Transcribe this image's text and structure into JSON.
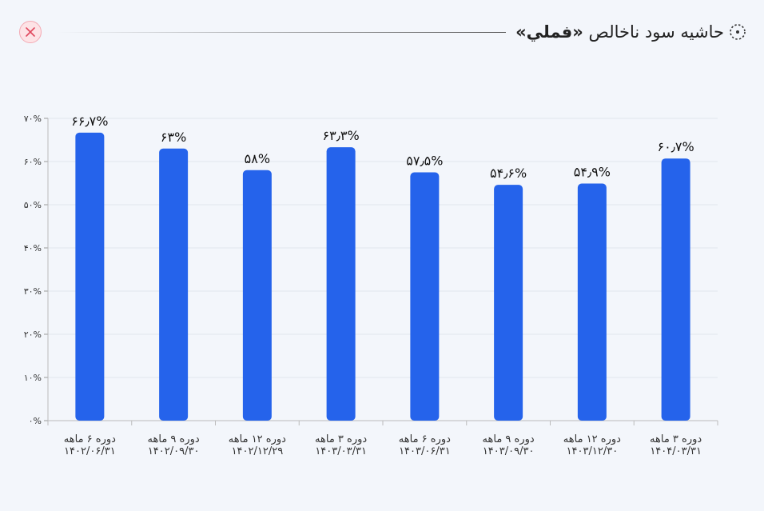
{
  "header": {
    "title_main": "حاشیه سود ناخالص",
    "title_symbol": "«فملي»"
  },
  "icons": {
    "close": "close-icon",
    "title": "dotted-circle-icon"
  },
  "colors": {
    "bar": "#2563eb",
    "close_bg": "#fde3e6",
    "close_x": "#e0485e",
    "grid": "#e1e6ee"
  },
  "chart_data": {
    "type": "bar",
    "categories": [
      [
        "دوره ۳ ماهه",
        "۱۴۰۴/۰۳/۳۱"
      ],
      [
        "دوره ۱۲ ماهه",
        "۱۴۰۳/۱۲/۳۰"
      ],
      [
        "دوره ۹ ماهه",
        "۱۴۰۳/۰۹/۳۰"
      ],
      [
        "دوره ۶ ماهه",
        "۱۴۰۳/۰۶/۳۱"
      ],
      [
        "دوره ۳ ماهه",
        "۱۴۰۳/۰۳/۳۱"
      ],
      [
        "دوره ۱۲ ماهه",
        "۱۴۰۲/۱۲/۲۹"
      ],
      [
        "دوره ۹ ماهه",
        "۱۴۰۲/۰۹/۳۰"
      ],
      [
        "دوره ۶ ماهه",
        "۱۴۰۲/۰۶/۳۱"
      ]
    ],
    "values": [
      60.7,
      54.9,
      54.6,
      57.5,
      63.3,
      58,
      63,
      66.7
    ],
    "value_labels": [
      "۶۰٫۷%",
      "۵۴٫۹%",
      "۵۴٫۶%",
      "۵۷٫۵%",
      "۶۳٫۳%",
      "۵۸%",
      "۶۳%",
      "۶۶٫۷%"
    ],
    "y_ticks": [
      "۰%",
      "۱۰%",
      "۲۰%",
      "۳۰%",
      "۴۰%",
      "۵۰%",
      "۶۰%",
      "۷۰%"
    ],
    "ylim": [
      0,
      70
    ],
    "x_direction": "right-to-left",
    "grid": true
  }
}
